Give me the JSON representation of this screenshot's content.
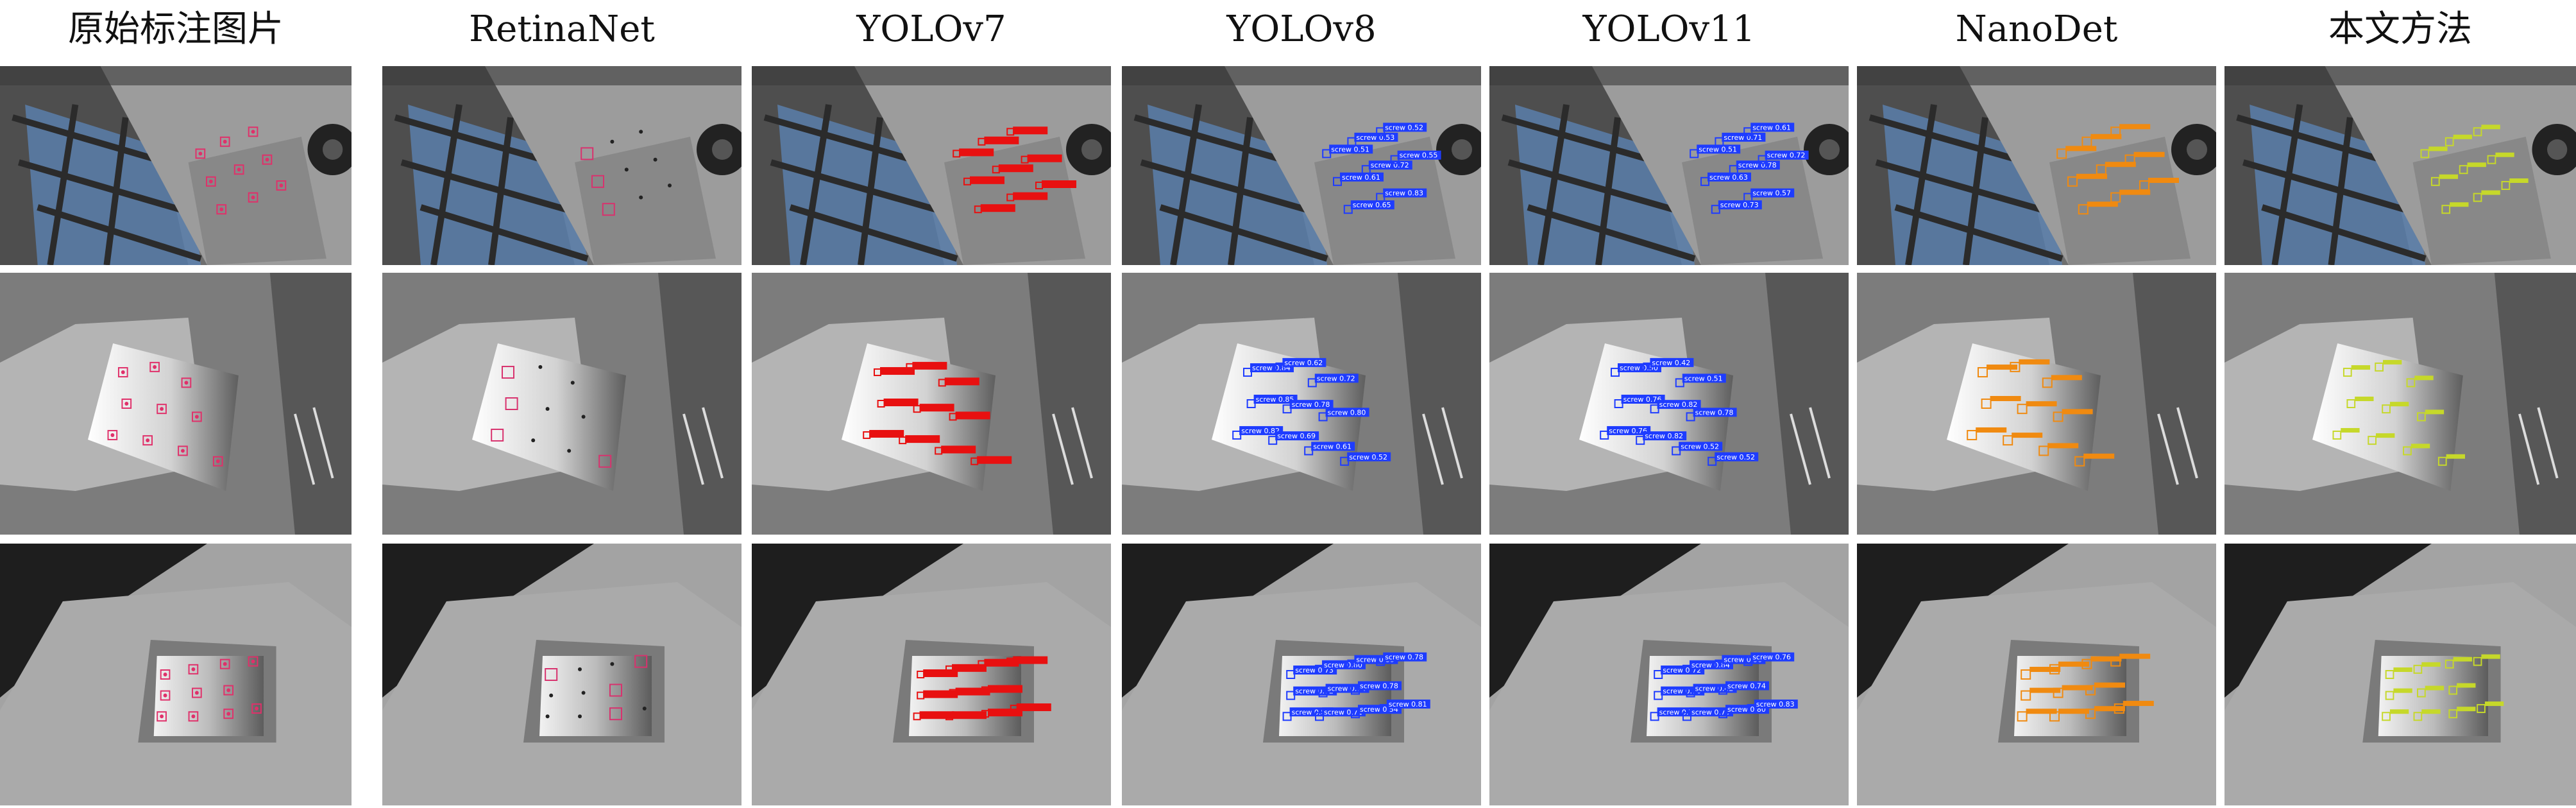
{
  "columns": [
    {
      "id": "gt",
      "title": "原始标注图片",
      "style": "gt"
    },
    {
      "id": "retinanet",
      "title": "RetinaNet",
      "style": "retina"
    },
    {
      "id": "yolov7",
      "title": "YOLOv7",
      "style": "red"
    },
    {
      "id": "yolov8",
      "title": "YOLOv8",
      "style": "blue"
    },
    {
      "id": "yolov11",
      "title": "YOLOv11",
      "style": "blue"
    },
    {
      "id": "nanodet",
      "title": "NanoDet",
      "style": "orange"
    },
    {
      "id": "ours",
      "title": "本文方法",
      "style": "yellow"
    }
  ],
  "rows": [
    {
      "id": "scene-1",
      "scene": "conveyor-top-view"
    },
    {
      "id": "scene-2",
      "scene": "bright-plate-diagonal"
    },
    {
      "id": "scene-3",
      "scene": "dark-plate-table"
    }
  ],
  "detections": {
    "yolov8": [
      [
        "screw 0.51",
        "screw 0.53",
        "screw 0.52",
        "screw 0.61",
        "screw 0.72",
        "screw 0.55",
        "screw 0.65",
        "screw 0.83"
      ],
      [
        "screw 0.84",
        "screw 0.62",
        "screw 0.72",
        "screw 0.85",
        "screw 0.78",
        "screw 0.80",
        "screw 0.82",
        "screw 0.69",
        "screw 0.61",
        "screw 0.52"
      ],
      [
        "screw 0.73",
        "screw 0.80",
        "screw 0.35",
        "screw 0.78",
        "screw 0.72",
        "screw 0.74",
        "screw 0.78",
        "screw 0.83",
        "screw 0.71",
        "screw 0.54",
        "screw 0.81"
      ]
    ],
    "yolov11": [
      [
        "screw 0.51",
        "screw 0.71",
        "screw 0.61",
        "screw 0.63",
        "screw 0.78",
        "screw 0.72",
        "screw 0.73",
        "screw 0.57"
      ],
      [
        "screw 0.50",
        "screw 0.42",
        "screw 0.51",
        "screw 0.76",
        "screw 0.82",
        "screw 0.78",
        "screw 0.76",
        "screw 0.82",
        "screw 0.52",
        "screw 0.52"
      ],
      [
        "screw 0.72",
        "screw 0.84",
        "screw 0.38",
        "screw 0.76",
        "screw 0.76",
        "screw 0.42",
        "screw 0.74",
        "screw 0.77",
        "screw 0.79",
        "screw 0.80",
        "screw 0.83"
      ]
    ]
  },
  "colors": {
    "gt_box": "#e0306a",
    "retina_box": "#d8326e",
    "yolov7_box": "#e81010",
    "yolo_blue": "#1e3cff",
    "nanodet_box": "#f08a10",
    "ours_box": "#c6d82a",
    "background": "#ffffff"
  }
}
